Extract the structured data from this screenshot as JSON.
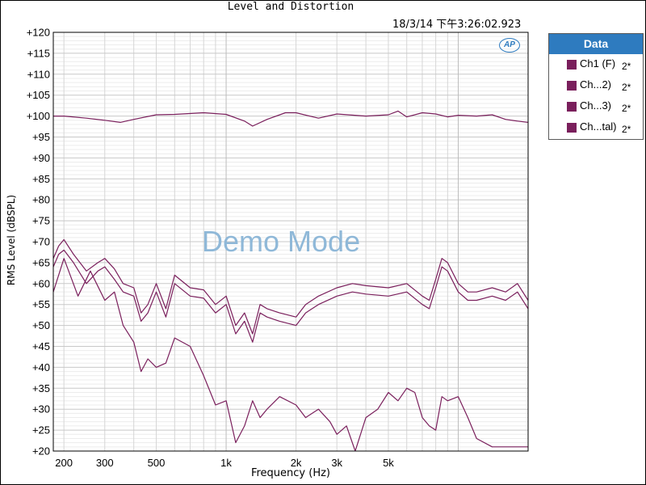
{
  "chart_data": {
    "type": "line",
    "title": "Level and Distortion",
    "timestamp": "18/3/14 下午3:26:02.923",
    "xlabel": "Frequency (Hz)",
    "ylabel": "RMS Level (dBSPL)",
    "x_scale": "log",
    "xlim": [
      180,
      20000
    ],
    "ylim": [
      20,
      120
    ],
    "grid": true,
    "x_ticks": [
      {
        "value": 200,
        "label": "200"
      },
      {
        "value": 300,
        "label": "300"
      },
      {
        "value": 500,
        "label": "500"
      },
      {
        "value": 1000,
        "label": "1k"
      },
      {
        "value": 2000,
        "label": "2k"
      },
      {
        "value": 3000,
        "label": "3k"
      },
      {
        "value": 5000,
        "label": "5k"
      }
    ],
    "y_ticks": [
      "+20",
      "+25",
      "+30",
      "+35",
      "+40",
      "+45",
      "+50",
      "+55",
      "+60",
      "+65",
      "+70",
      "+75",
      "+80",
      "+85",
      "+90",
      "+95",
      "+100",
      "+105",
      "+110",
      "+115",
      "+120"
    ],
    "series": [
      {
        "name": "Ch1 (F)",
        "color": "#7a1f5c",
        "x": [
          180,
          200,
          250,
          300,
          350,
          400,
          500,
          600,
          800,
          1000,
          1200,
          1300,
          1500,
          1800,
          2000,
          2500,
          3000,
          4000,
          5000,
          5500,
          6000,
          7000,
          8000,
          9000,
          10000,
          12000,
          14000,
          16000,
          18000,
          20000
        ],
        "y": [
          100,
          100,
          99.5,
          99,
          98.5,
          99.2,
          100.3,
          100.4,
          100.8,
          100.4,
          98.8,
          97.6,
          99.2,
          100.8,
          100.8,
          99.5,
          100.5,
          100,
          100.3,
          101.2,
          99.8,
          100.8,
          100.5,
          99.8,
          100.2,
          100,
          100.3,
          99.2,
          98.8,
          98.5
        ]
      },
      {
        "name": "Ch...2)",
        "color": "#7a1f5c",
        "x": [
          180,
          190,
          200,
          220,
          250,
          280,
          300,
          330,
          360,
          400,
          430,
          460,
          500,
          550,
          600,
          700,
          800,
          900,
          1000,
          1100,
          1200,
          1300,
          1400,
          1500,
          1700,
          2000,
          2200,
          2500,
          3000,
          3500,
          4000,
          5000,
          6000,
          7000,
          7500,
          8000,
          8500,
          9000,
          10000,
          11000,
          12000,
          14000,
          16000,
          18000,
          20000
        ],
        "y": [
          66,
          69,
          70.5,
          67,
          63,
          65,
          66,
          63.5,
          60,
          59,
          53,
          55,
          60,
          54,
          62,
          59,
          58.5,
          55,
          57,
          50,
          53,
          48,
          55,
          54,
          53,
          52,
          55,
          57,
          59,
          60,
          59.5,
          59,
          60,
          57,
          56,
          61,
          66,
          65,
          60,
          58,
          58,
          59,
          58,
          60,
          56
        ]
      },
      {
        "name": "Ch...3)",
        "color": "#7a1f5c",
        "x": [
          180,
          190,
          200,
          220,
          250,
          280,
          300,
          330,
          360,
          400,
          430,
          460,
          500,
          550,
          600,
          700,
          800,
          900,
          1000,
          1100,
          1200,
          1300,
          1400,
          1500,
          1700,
          2000,
          2200,
          2500,
          3000,
          3500,
          4000,
          5000,
          6000,
          7000,
          7500,
          8000,
          8500,
          9000,
          10000,
          11000,
          12000,
          14000,
          16000,
          18000,
          20000
        ],
        "y": [
          64,
          67,
          68,
          65,
          60,
          63,
          64,
          61,
          58,
          57,
          51,
          53,
          58,
          52,
          60,
          57,
          56.5,
          53,
          55,
          48,
          51,
          46,
          53,
          52,
          51,
          50,
          53,
          55,
          57,
          58,
          57.5,
          57,
          58,
          55,
          54,
          59,
          64,
          63,
          58,
          56,
          56,
          57,
          56,
          58,
          54
        ]
      },
      {
        "name": "Ch...tal)",
        "color": "#7a1f5c",
        "x": [
          180,
          200,
          230,
          260,
          300,
          330,
          360,
          400,
          430,
          460,
          500,
          550,
          600,
          700,
          800,
          900,
          1000,
          1100,
          1200,
          1300,
          1400,
          1500,
          1700,
          2000,
          2200,
          2500,
          2800,
          3000,
          3300,
          3600,
          4000,
          4500,
          5000,
          5500,
          6000,
          6500,
          7000,
          7500,
          8000,
          8500,
          9000,
          10000,
          11000,
          12000,
          14000,
          16000,
          18000,
          20000
        ],
        "y": [
          58,
          66,
          57,
          63,
          56,
          58,
          50,
          46,
          39,
          42,
          40,
          41,
          47,
          45,
          38,
          31,
          32,
          22,
          26,
          32,
          28,
          30,
          33,
          31,
          28,
          30,
          27,
          24,
          26,
          20,
          28,
          30,
          34,
          32,
          35,
          34,
          28,
          26,
          25,
          33,
          32,
          33,
          28,
          23,
          21,
          21,
          21,
          21
        ]
      }
    ]
  },
  "legend": {
    "header": "Data",
    "multiplier": "2*",
    "items": [
      "Ch1 (F)",
      "Ch...2)",
      "Ch...3)",
      "Ch...tal)"
    ]
  },
  "logo_text": "AP",
  "watermark": "Demo Mode"
}
